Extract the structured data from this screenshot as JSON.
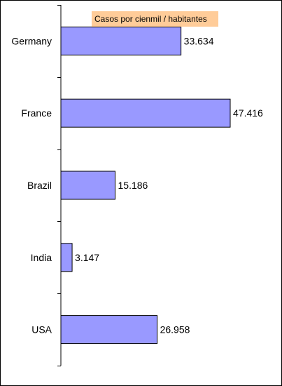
{
  "chart_data": {
    "type": "bar",
    "orientation": "horizontal",
    "categories": [
      "Germany",
      "France",
      "Brazil",
      "India",
      "USA"
    ],
    "values": [
      33.634,
      47.416,
      15.186,
      3.147,
      26.958
    ],
    "value_labels": [
      "33.634",
      "47.416",
      "15.186",
      "3.147",
      "26.958"
    ],
    "series": [
      {
        "name": "Casos por cienmil / habitantes",
        "values": [
          33.634,
          47.416,
          15.186,
          3.147,
          26.958
        ]
      }
    ],
    "xlim": [
      0,
      47.416
    ],
    "grid": false,
    "legend_position": "top",
    "colors": {
      "bar_fill": "#9999ff",
      "bar_stroke": "#000000",
      "legend_bg": "#ffcc99",
      "axis": "#000000"
    }
  }
}
